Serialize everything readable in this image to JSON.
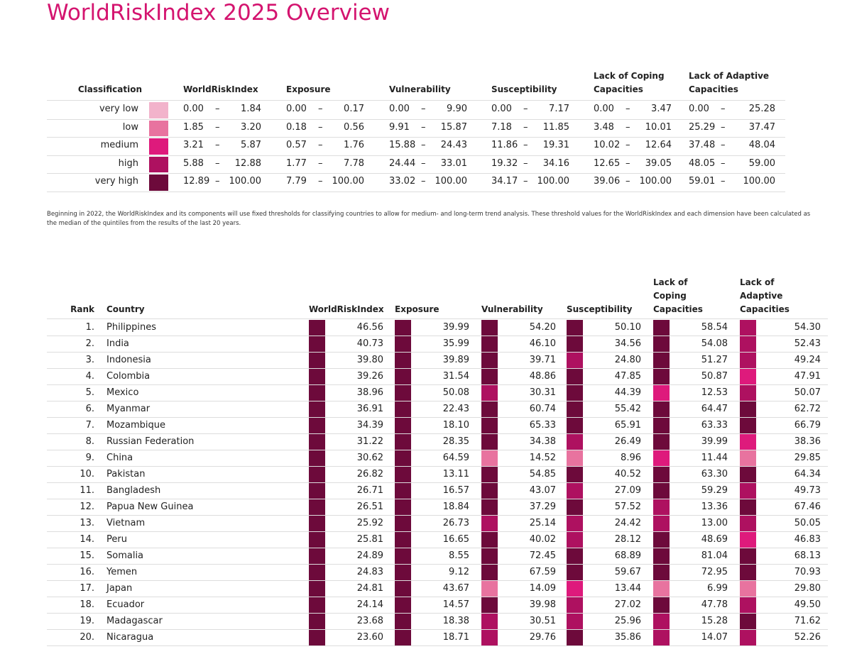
{
  "title": "WorldRiskIndex 2025 Overview",
  "classification": {
    "header": [
      "Classification",
      "WorldRiskIndex",
      "Exposure",
      "Vulnerability",
      "Susceptibility",
      "Lack of Coping Capacities",
      "Lack of Adaptive Capacities"
    ],
    "separator": "–",
    "rows": [
      {
        "label": "very low",
        "color": "#f2b3cb",
        "ranges": [
          [
            "0.00",
            "1.84"
          ],
          [
            "0.00",
            "0.17"
          ],
          [
            "0.00",
            "9.90"
          ],
          [
            "0.00",
            "7.17"
          ],
          [
            "0.00",
            "3.47"
          ],
          [
            "0.00",
            "25.28"
          ]
        ]
      },
      {
        "label": "low",
        "color": "#e8739f",
        "ranges": [
          [
            "1.85",
            "3.20"
          ],
          [
            "0.18",
            "0.56"
          ],
          [
            "9.91",
            "15.87"
          ],
          [
            "7.18",
            "11.85"
          ],
          [
            "3.48",
            "10.01"
          ],
          [
            "25.29",
            "37.47"
          ]
        ]
      },
      {
        "label": "medium",
        "color": "#de1a7c",
        "ranges": [
          [
            "3.21",
            "5.87"
          ],
          [
            "0.57",
            "1.76"
          ],
          [
            "15.88",
            "24.43"
          ],
          [
            "11.86",
            "19.31"
          ],
          [
            "10.02",
            "12.64"
          ],
          [
            "37.48",
            "48.04"
          ]
        ]
      },
      {
        "label": "high",
        "color": "#ae1160",
        "ranges": [
          [
            "5.88",
            "12.88"
          ],
          [
            "1.77",
            "7.78"
          ],
          [
            "24.44",
            "33.01"
          ],
          [
            "19.32",
            "34.16"
          ],
          [
            "12.65",
            "39.05"
          ],
          [
            "48.05",
            "59.00"
          ]
        ]
      },
      {
        "label": "very high",
        "color": "#6d0a3b",
        "ranges": [
          [
            "12.89",
            "100.00"
          ],
          [
            "7.79",
            "100.00"
          ],
          [
            "33.02",
            "100.00"
          ],
          [
            "34.17",
            "100.00"
          ],
          [
            "39.06",
            "100.00"
          ],
          [
            "59.01",
            "100.00"
          ]
        ]
      }
    ]
  },
  "note": "Beginning in 2022, the WorldRiskIndex and its components will use fixed thresholds for classifying countries to allow for medium- and long-term trend analysis. These threshold values for the WorldRiskIndex and each dimension have been calculated as the median of the quintiles from the results of the last 20 years.",
  "ranking": {
    "header": [
      "Rank",
      "Country",
      "WorldRiskIndex",
      "Exposure",
      "Vulnerability",
      "Susceptibility",
      "Lack of Coping Capacities",
      "Lack of Adaptive Capacities"
    ],
    "rows": [
      [
        "1.",
        "Philippines",
        "46.56",
        "39.99",
        "54.20",
        "50.10",
        "58.54",
        "54.30"
      ],
      [
        "2.",
        "India",
        "40.73",
        "35.99",
        "46.10",
        "34.56",
        "54.08",
        "52.43"
      ],
      [
        "3.",
        "Indonesia",
        "39.80",
        "39.89",
        "39.71",
        "24.80",
        "51.27",
        "49.24"
      ],
      [
        "4.",
        "Colombia",
        "39.26",
        "31.54",
        "48.86",
        "47.85",
        "50.87",
        "47.91"
      ],
      [
        "5.",
        "Mexico",
        "38.96",
        "50.08",
        "30.31",
        "44.39",
        "12.53",
        "50.07"
      ],
      [
        "6.",
        "Myanmar",
        "36.91",
        "22.43",
        "60.74",
        "55.42",
        "64.47",
        "62.72"
      ],
      [
        "7.",
        "Mozambique",
        "34.39",
        "18.10",
        "65.33",
        "65.91",
        "63.33",
        "66.79"
      ],
      [
        "8.",
        "Russian Federation",
        "31.22",
        "28.35",
        "34.38",
        "26.49",
        "39.99",
        "38.36"
      ],
      [
        "9.",
        "China",
        "30.62",
        "64.59",
        "14.52",
        "8.96",
        "11.44",
        "29.85"
      ],
      [
        "10.",
        "Pakistan",
        "26.82",
        "13.11",
        "54.85",
        "40.52",
        "63.30",
        "64.34"
      ],
      [
        "11.",
        "Bangladesh",
        "26.71",
        "16.57",
        "43.07",
        "27.09",
        "59.29",
        "49.73"
      ],
      [
        "12.",
        "Papua New Guinea",
        "26.51",
        "18.84",
        "37.29",
        "57.52",
        "13.36",
        "67.46"
      ],
      [
        "13.",
        "Vietnam",
        "25.92",
        "26.73",
        "25.14",
        "24.42",
        "13.00",
        "50.05"
      ],
      [
        "14.",
        "Peru",
        "25.81",
        "16.65",
        "40.02",
        "28.12",
        "48.69",
        "46.83"
      ],
      [
        "15.",
        "Somalia",
        "24.89",
        "8.55",
        "72.45",
        "68.89",
        "81.04",
        "68.13"
      ],
      [
        "16.",
        "Yemen",
        "24.83",
        "9.12",
        "67.59",
        "59.67",
        "72.95",
        "70.93"
      ],
      [
        "17.",
        "Japan",
        "24.81",
        "43.67",
        "14.09",
        "13.44",
        "6.99",
        "29.80"
      ],
      [
        "18.",
        "Ecuador",
        "24.14",
        "14.57",
        "39.98",
        "27.02",
        "47.78",
        "49.50"
      ],
      [
        "19.",
        "Madagascar",
        "23.68",
        "18.38",
        "30.51",
        "25.96",
        "15.28",
        "71.62"
      ],
      [
        "20.",
        "Nicaragua",
        "23.60",
        "18.71",
        "29.76",
        "35.86",
        "14.07",
        "52.26"
      ]
    ]
  }
}
